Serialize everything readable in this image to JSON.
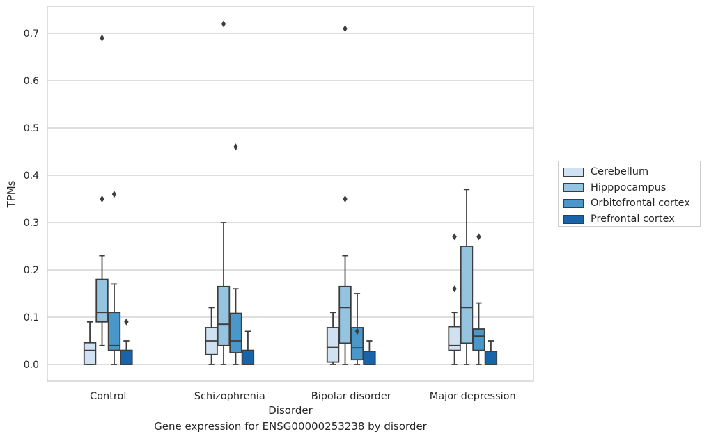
{
  "caption": "Gene expression for ENSG00000253238 by disorder",
  "chart_data": {
    "type": "boxplot",
    "xlabel": "Disorder",
    "ylabel": "TPMs",
    "ylim": [
      -0.035,
      0.755
    ],
    "yticks": [
      0.0,
      0.1,
      0.2,
      0.3,
      0.4,
      0.5,
      0.6,
      0.7
    ],
    "ytick_labels": [
      "0.0",
      "0.1",
      "0.2",
      "0.3",
      "0.4",
      "0.5",
      "0.6",
      "0.7"
    ],
    "grid": "horizontal",
    "legend_position": "outside right",
    "categories": [
      "Control",
      "Schizophrenia",
      "Bipolar disorder",
      "Major depression"
    ],
    "series": [
      {
        "name": "Cerebellum",
        "color": "#d0e1f2",
        "boxes": [
          {
            "whislo": 0.0,
            "q1": 0.0,
            "med": 0.03,
            "q3": 0.046,
            "whishi": 0.09,
            "fliers": []
          },
          {
            "whislo": 0.0,
            "q1": 0.021,
            "med": 0.05,
            "q3": 0.078,
            "whishi": 0.12,
            "fliers": []
          },
          {
            "whislo": 0.0,
            "q1": 0.005,
            "med": 0.036,
            "q3": 0.078,
            "whishi": 0.11,
            "fliers": []
          },
          {
            "whislo": 0.0,
            "q1": 0.03,
            "med": 0.04,
            "q3": 0.08,
            "whishi": 0.11,
            "fliers": [
              0.16,
              0.27
            ]
          }
        ]
      },
      {
        "name": "Hipppocampus",
        "color": "#94c4df",
        "boxes": [
          {
            "whislo": 0.04,
            "q1": 0.09,
            "med": 0.11,
            "q3": 0.18,
            "whishi": 0.23,
            "fliers": [
              0.35,
              0.69
            ]
          },
          {
            "whislo": 0.0,
            "q1": 0.04,
            "med": 0.085,
            "q3": 0.165,
            "whishi": 0.3,
            "fliers": [
              0.72
            ]
          },
          {
            "whislo": 0.0,
            "q1": 0.045,
            "med": 0.12,
            "q3": 0.165,
            "whishi": 0.23,
            "fliers": [
              0.35,
              0.71
            ]
          },
          {
            "whislo": 0.0,
            "q1": 0.045,
            "med": 0.12,
            "q3": 0.25,
            "whishi": 0.37,
            "fliers": []
          }
        ]
      },
      {
        "name": "Orbitofrontal cortex",
        "color": "#4a98c9",
        "boxes": [
          {
            "whislo": 0.0,
            "q1": 0.03,
            "med": 0.04,
            "q3": 0.11,
            "whishi": 0.17,
            "fliers": [
              0.36
            ]
          },
          {
            "whislo": 0.0,
            "q1": 0.025,
            "med": 0.05,
            "q3": 0.108,
            "whishi": 0.16,
            "fliers": [
              0.46
            ]
          },
          {
            "whislo": 0.0,
            "q1": 0.01,
            "med": 0.035,
            "q3": 0.078,
            "whishi": 0.15,
            "fliers": [
              0.07
            ]
          },
          {
            "whislo": 0.0,
            "q1": 0.03,
            "med": 0.06,
            "q3": 0.075,
            "whishi": 0.13,
            "fliers": [
              0.27
            ]
          }
        ]
      },
      {
        "name": "Prefrontal cortex",
        "color": "#1764ab",
        "boxes": [
          {
            "whislo": 0.0,
            "q1": 0.0,
            "med": 0.0,
            "q3": 0.03,
            "whishi": 0.05,
            "fliers": [
              0.09
            ]
          },
          {
            "whislo": 0.0,
            "q1": 0.0,
            "med": 0.0,
            "q3": 0.03,
            "whishi": 0.07,
            "fliers": []
          },
          {
            "whislo": 0.0,
            "q1": 0.0,
            "med": 0.0,
            "q3": 0.028,
            "whishi": 0.05,
            "fliers": []
          },
          {
            "whislo": 0.0,
            "q1": 0.0,
            "med": 0.0,
            "q3": 0.028,
            "whishi": 0.05,
            "fliers": []
          }
        ]
      }
    ]
  }
}
